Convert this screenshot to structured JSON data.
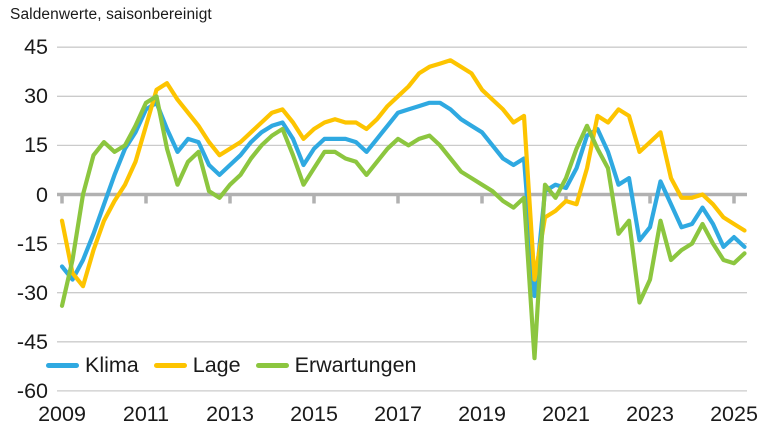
{
  "title": "Saldenwerte, saisonbereinigt",
  "colors": {
    "klima": "#2fa9e1",
    "lage": "#fdc400",
    "erwartungen": "#8cc63f",
    "grid": "#cbcbcb",
    "axis": "#b1b1b1",
    "text": "#1a1a1a"
  },
  "legend": [
    {
      "id": "klima",
      "label": "Klima"
    },
    {
      "id": "lage",
      "label": "Lage"
    },
    {
      "id": "erwartungen",
      "label": "Erwartungen"
    }
  ],
  "chart_data": {
    "type": "line",
    "title": "Saldenwerte, saisonbereinigt",
    "xlabel": "",
    "ylabel": "",
    "ylim": [
      -60,
      45
    ],
    "xlim": [
      2008.9,
      2025.5
    ],
    "grid": "horizontal",
    "legend_position": "bottom-left-inside",
    "x_start": 2009,
    "x_step": 0.25,
    "x_ticks": [
      2009,
      2011,
      2013,
      2015,
      2017,
      2019,
      2021,
      2023,
      2025
    ],
    "y_ticks": [
      45,
      30,
      15,
      0,
      -15,
      -30,
      -45,
      -60
    ],
    "series": [
      {
        "name": "Klima",
        "color_key": "klima",
        "values": [
          -22,
          -26,
          -20,
          -12,
          -3,
          6,
          14,
          19,
          26,
          28,
          20,
          13,
          17,
          16,
          9,
          6,
          9,
          12,
          16,
          19,
          21,
          22,
          17,
          9,
          14,
          17,
          17,
          17,
          16,
          13,
          17,
          21,
          25,
          26,
          27,
          28,
          28,
          26,
          23,
          21,
          19,
          15,
          11,
          9,
          11,
          -31,
          1,
          3,
          2,
          8,
          18,
          20,
          13,
          3,
          5,
          -14,
          -10,
          4,
          -3,
          -10,
          -9,
          -4,
          -9,
          -16,
          -13,
          -16
        ]
      },
      {
        "name": "Lage",
        "color_key": "lage",
        "values": [
          -8,
          -24,
          -28,
          -17,
          -8,
          -2,
          3,
          10,
          21,
          32,
          34,
          29,
          25,
          21,
          16,
          12,
          14,
          16,
          19,
          22,
          25,
          26,
          22,
          17,
          20,
          22,
          23,
          22,
          22,
          20,
          23,
          27,
          30,
          33,
          37,
          39,
          40,
          41,
          39,
          37,
          32,
          29,
          26,
          22,
          24,
          -26,
          -7,
          -5,
          -2,
          -3,
          8,
          24,
          22,
          26,
          24,
          13,
          16,
          19,
          5,
          -1,
          -1,
          0,
          -3,
          -7,
          -9,
          -11
        ]
      },
      {
        "name": "Erwartungen",
        "color_key": "erwartungen",
        "values": [
          -34,
          -20,
          0,
          12,
          16,
          13,
          15,
          21,
          28,
          30,
          14,
          3,
          10,
          13,
          1,
          -1,
          3,
          6,
          11,
          15,
          18,
          20,
          12,
          3,
          8,
          13,
          13,
          11,
          10,
          6,
          10,
          14,
          17,
          15,
          17,
          18,
          15,
          11,
          7,
          5,
          3,
          1,
          -2,
          -4,
          -1,
          -50,
          3,
          -1,
          5,
          14,
          21,
          14,
          8,
          -12,
          -8,
          -33,
          -26,
          -8,
          -20,
          -17,
          -15,
          -9,
          -15,
          -20,
          -21,
          -18
        ]
      }
    ]
  }
}
